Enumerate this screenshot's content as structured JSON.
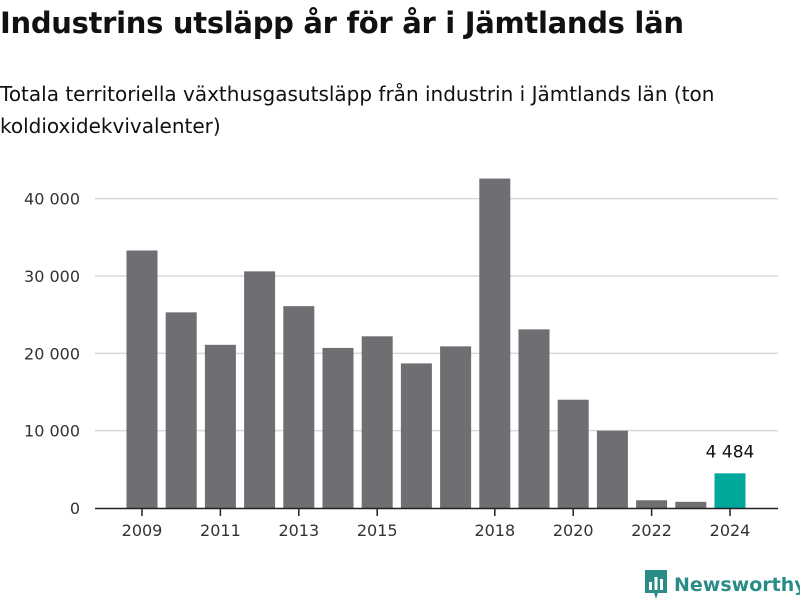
{
  "header": {
    "title": "Industrins utsläpp år för år i Jämtlands län",
    "subtitle": "Totala territoriella växthusgasutsläpp från industrin i Jämtlands län (ton koldioxidekvivalenter)"
  },
  "brand": {
    "name": "Newsworthy",
    "icon": "bar-chart-speech-bubble-icon",
    "color": "#2a8c87"
  },
  "colors": {
    "bar": "#6e6e73",
    "highlight": "#00a89b",
    "grid": "#d9d9d9",
    "axis": "#222222"
  },
  "chart_data": {
    "type": "bar",
    "title": "Industrins utsläpp år för år i Jämtlands län",
    "subtitle": "Totala territoriella växthusgasutsläpp från industrin i Jämtlands län (ton koldioxidekvivalenter)",
    "xlabel": "",
    "ylabel": "",
    "categories": [
      "2009",
      "2010",
      "2011",
      "2012",
      "2013",
      "2014",
      "2015",
      "2016",
      "2017",
      "2018",
      "2019",
      "2020",
      "2021",
      "2022",
      "2023",
      "2024"
    ],
    "values": [
      33300,
      25300,
      21100,
      30600,
      26100,
      20700,
      22200,
      18700,
      20900,
      42600,
      23100,
      14000,
      10000,
      1000,
      800,
      4484
    ],
    "highlight_index": 15,
    "highlight_label": "4 484",
    "ylim": [
      0,
      45000
    ],
    "yticks": [
      0,
      10000,
      20000,
      30000,
      40000
    ],
    "ytick_labels": [
      "0",
      "10 000",
      "20 000",
      "30 000",
      "40 000"
    ],
    "xtick_labels": [
      "2009",
      "2011",
      "2013",
      "2015",
      "2018",
      "2020",
      "2022",
      "2024"
    ],
    "grid": true,
    "legend": "none"
  }
}
